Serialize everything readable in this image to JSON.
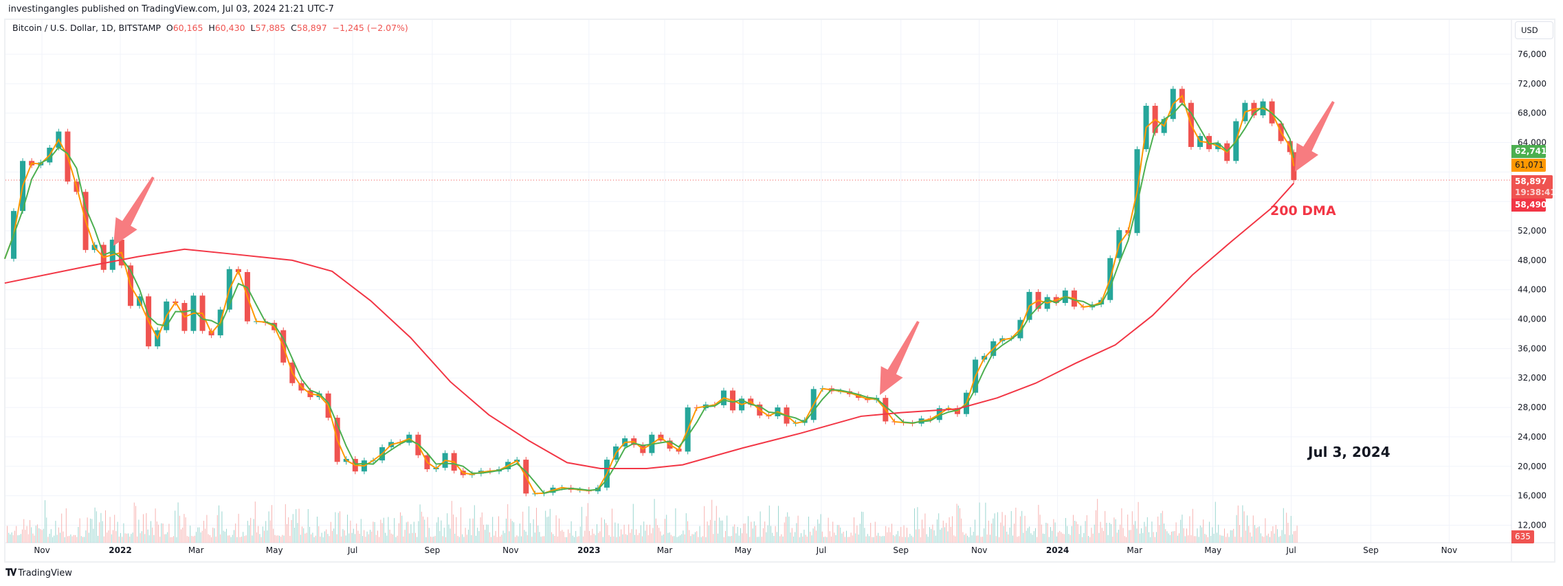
{
  "publisher": "investingangles published on TradingView.com, Jul 03, 2024 21:21 UTC-7",
  "legend": {
    "symbol": "Bitcoin / U.S. Dollar, 1D, BITSTAMP",
    "o_label": "O",
    "o": "60,165",
    "h_label": "H",
    "h": "60,430",
    "l_label": "L",
    "l": "57,885",
    "c_label": "C",
    "c": "58,897",
    "change": "−1,245 (−2.07%)"
  },
  "currency": "USD",
  "price_labels": {
    "ma_green": "62,741",
    "ma_orange": "61,071",
    "last": "58,897",
    "countdown": "19:38:41",
    "ma200": "58,490",
    "volume": "635"
  },
  "logo_text": "TradingView",
  "annotations": {
    "dma_label": "200 DMA",
    "date_label": "Jul 3, 2024"
  },
  "colors": {
    "up": "#26a69a",
    "down": "#ef5350",
    "ma_short": "#ff9800",
    "ma_mid": "#4caf50",
    "ma200": "#f23645",
    "arrow": "#f77c80"
  },
  "chart_data": {
    "type": "candlestick",
    "title": "Bitcoin / U.S. Dollar, 1D, BITSTAMP",
    "ylim": [
      10000,
      77000
    ],
    "y_ticks": [
      12000,
      16000,
      20000,
      24000,
      28000,
      32000,
      36000,
      40000,
      44000,
      48000,
      52000,
      56000,
      60000,
      64000,
      68000,
      72000,
      76000
    ],
    "y_tick_labels": [
      "12,000",
      "16,000",
      "20,000",
      "24,000",
      "28,000",
      "32,000",
      "36,000",
      "40,000",
      "44,000",
      "48,000",
      "52,000",
      "",
      "",
      "64,000",
      "68,000",
      "72,000",
      "76,000"
    ],
    "x_ticks": [
      {
        "date": "2021-11-01",
        "label": "Nov"
      },
      {
        "date": "2022-01-01",
        "label": "2022"
      },
      {
        "date": "2022-03-01",
        "label": "Mar"
      },
      {
        "date": "2022-05-01",
        "label": "May"
      },
      {
        "date": "2022-07-01",
        "label": "Jul"
      },
      {
        "date": "2022-09-01",
        "label": "Sep"
      },
      {
        "date": "2022-11-01",
        "label": "Nov"
      },
      {
        "date": "2023-01-01",
        "label": "2023"
      },
      {
        "date": "2023-03-01",
        "label": "Mar"
      },
      {
        "date": "2023-05-01",
        "label": "May"
      },
      {
        "date": "2023-07-01",
        "label": "Jul"
      },
      {
        "date": "2023-09-01",
        "label": "Sep"
      },
      {
        "date": "2023-11-01",
        "label": "Nov"
      },
      {
        "date": "2024-01-01",
        "label": "2024"
      },
      {
        "date": "2024-03-01",
        "label": "Mar"
      },
      {
        "date": "2024-05-01",
        "label": "May"
      },
      {
        "date": "2024-07-01",
        "label": "Jul"
      },
      {
        "date": "2024-09-01",
        "label": "Sep"
      },
      {
        "date": "2024-11-01",
        "label": "Nov"
      }
    ],
    "grid": true,
    "start_date": "2021-10-03",
    "interval_days": 7,
    "close": [
      48200,
      54700,
      61500,
      60900,
      61300,
      63300,
      65500,
      58700,
      57300,
      49400,
      50100,
      46700,
      50800,
      47300,
      41800,
      43100,
      36300,
      38500,
      42400,
      42200,
      38400,
      43200,
      38400,
      37800,
      41300,
      46800,
      46400,
      39700,
      39700,
      39500,
      38500,
      34100,
      31300,
      30300,
      29400,
      29900,
      26600,
      20600,
      21000,
      19300,
      20800,
      20800,
      22600,
      23300,
      23200,
      24300,
      21500,
      19600,
      19800,
      21800,
      19400,
      18800,
      19000,
      19400,
      19300,
      19600,
      20600,
      20900,
      16300,
      16300,
      16400,
      17100,
      17100,
      16800,
      16800,
      16600,
      17100,
      20900,
      22700,
      23800,
      22900,
      21800,
      24300,
      23500,
      22400,
      22000,
      28000,
      27900,
      28400,
      28300,
      30300,
      27600,
      29200,
      28400,
      26900,
      26800,
      28000,
      25800,
      25900,
      26300,
      30500,
      30600,
      30200,
      30200,
      29800,
      29300,
      29000,
      29300,
      26100,
      26000,
      25900,
      25800,
      26500,
      26300,
      27900,
      27900,
      27100,
      30000,
      34500,
      35000,
      37000,
      37400,
      37400,
      39900,
      43700,
      41400,
      43000,
      42200,
      43900,
      41700,
      41600,
      42000,
      42600,
      48300,
      52100,
      51700,
      63100,
      69000,
      65300,
      67200,
      71300,
      69400,
      63400,
      64900,
      63100,
      63900,
      61500,
      66900,
      69400,
      67700,
      69600,
      66600,
      64200,
      62700
    ],
    "last_close": {
      "date": "2024-07-03",
      "value": 58897
    },
    "ma200": [
      {
        "date": "2021-10-03",
        "value": 44900
      },
      {
        "date": "2021-12-01",
        "value": 47000
      },
      {
        "date": "2022-01-15",
        "value": 48500
      },
      {
        "date": "2022-02-20",
        "value": 49500
      },
      {
        "date": "2022-04-01",
        "value": 48800
      },
      {
        "date": "2022-05-15",
        "value": 48000
      },
      {
        "date": "2022-06-15",
        "value": 46500
      },
      {
        "date": "2022-07-15",
        "value": 42500
      },
      {
        "date": "2022-08-15",
        "value": 37500
      },
      {
        "date": "2022-09-15",
        "value": 31500
      },
      {
        "date": "2022-10-15",
        "value": 27000
      },
      {
        "date": "2022-11-15",
        "value": 23500
      },
      {
        "date": "2022-12-15",
        "value": 20500
      },
      {
        "date": "2023-01-10",
        "value": 19700
      },
      {
        "date": "2023-02-15",
        "value": 19700
      },
      {
        "date": "2023-03-15",
        "value": 20200
      },
      {
        "date": "2023-05-01",
        "value": 22500
      },
      {
        "date": "2023-06-15",
        "value": 24500
      },
      {
        "date": "2023-08-01",
        "value": 26800
      },
      {
        "date": "2023-09-01",
        "value": 27300
      },
      {
        "date": "2023-10-15",
        "value": 27800
      },
      {
        "date": "2023-11-15",
        "value": 29300
      },
      {
        "date": "2023-12-15",
        "value": 31300
      },
      {
        "date": "2024-01-15",
        "value": 34000
      },
      {
        "date": "2024-02-15",
        "value": 36500
      },
      {
        "date": "2024-03-15",
        "value": 40500
      },
      {
        "date": "2024-04-15",
        "value": 46000
      },
      {
        "date": "2024-05-15",
        "value": 50500
      },
      {
        "date": "2024-06-15",
        "value": 55000
      },
      {
        "date": "2024-07-03",
        "value": 58490
      }
    ]
  }
}
